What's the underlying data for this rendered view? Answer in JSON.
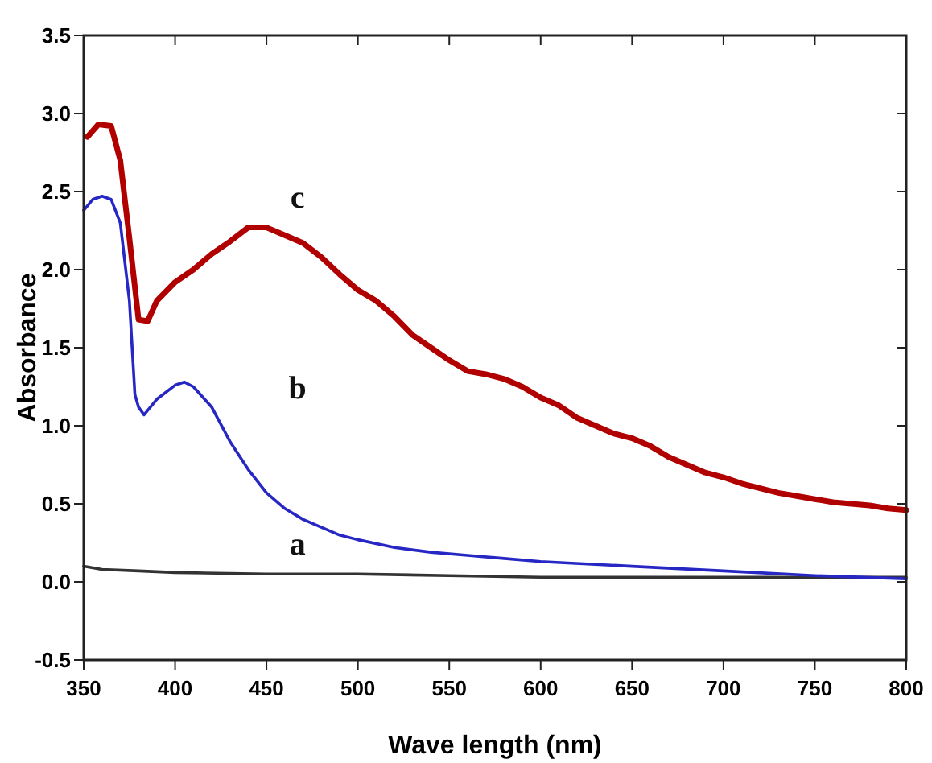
{
  "chart_data": {
    "type": "line",
    "xlabel": "Wave length (nm)",
    "ylabel": "Absorbance",
    "xlim": [
      350,
      800
    ],
    "ylim": [
      -0.5,
      3.5
    ],
    "xticks": [
      350,
      400,
      450,
      500,
      550,
      600,
      650,
      700,
      750,
      800
    ],
    "yticks": [
      -0.5,
      {
        "value": 0,
        "label": "0.0"
      },
      0.5,
      {
        "value": 1,
        "label": "1.0"
      },
      1.5,
      {
        "value": 2,
        "label": "2.0"
      },
      2.5,
      {
        "value": 3,
        "label": "3.0"
      },
      3.5
    ],
    "grid": false,
    "marker": "none",
    "line_style": "solid",
    "series": [
      {
        "name": "a",
        "color": "#333333",
        "x": [
          350,
          360,
          380,
          400,
          450,
          500,
          550,
          600,
          650,
          700,
          750,
          800
        ],
        "values": [
          0.1,
          0.08,
          0.07,
          0.06,
          0.05,
          0.05,
          0.04,
          0.03,
          0.03,
          0.03,
          0.03,
          0.03
        ]
      },
      {
        "name": "b",
        "color": "#2727c4",
        "x": [
          350,
          355,
          360,
          365,
          370,
          375,
          378,
          380,
          383,
          390,
          400,
          405,
          410,
          420,
          430,
          440,
          450,
          460,
          470,
          480,
          490,
          500,
          520,
          540,
          560,
          580,
          600,
          650,
          700,
          750,
          800
        ],
        "values": [
          2.38,
          2.45,
          2.47,
          2.45,
          2.3,
          1.8,
          1.2,
          1.12,
          1.07,
          1.17,
          1.26,
          1.28,
          1.25,
          1.12,
          0.9,
          0.72,
          0.57,
          0.47,
          0.4,
          0.35,
          0.3,
          0.27,
          0.22,
          0.19,
          0.17,
          0.15,
          0.13,
          0.1,
          0.07,
          0.04,
          0.02
        ]
      },
      {
        "name": "c",
        "color": "#b00000",
        "x": [
          352,
          358,
          365,
          370,
          375,
          380,
          385,
          390,
          400,
          410,
          420,
          430,
          440,
          450,
          460,
          470,
          480,
          490,
          500,
          510,
          520,
          530,
          540,
          550,
          560,
          570,
          580,
          590,
          600,
          610,
          620,
          630,
          640,
          650,
          660,
          670,
          680,
          690,
          700,
          710,
          720,
          730,
          740,
          750,
          760,
          770,
          780,
          790,
          800
        ],
        "values": [
          2.85,
          2.93,
          2.92,
          2.7,
          2.2,
          1.68,
          1.67,
          1.8,
          1.92,
          2.0,
          2.1,
          2.18,
          2.27,
          2.27,
          2.22,
          2.17,
          2.08,
          1.97,
          1.87,
          1.8,
          1.7,
          1.58,
          1.5,
          1.42,
          1.35,
          1.33,
          1.3,
          1.25,
          1.18,
          1.13,
          1.05,
          1.0,
          0.95,
          0.92,
          0.87,
          0.8,
          0.75,
          0.7,
          0.67,
          0.63,
          0.6,
          0.57,
          0.55,
          0.53,
          0.51,
          0.5,
          0.49,
          0.47,
          0.46
        ]
      }
    ]
  }
}
